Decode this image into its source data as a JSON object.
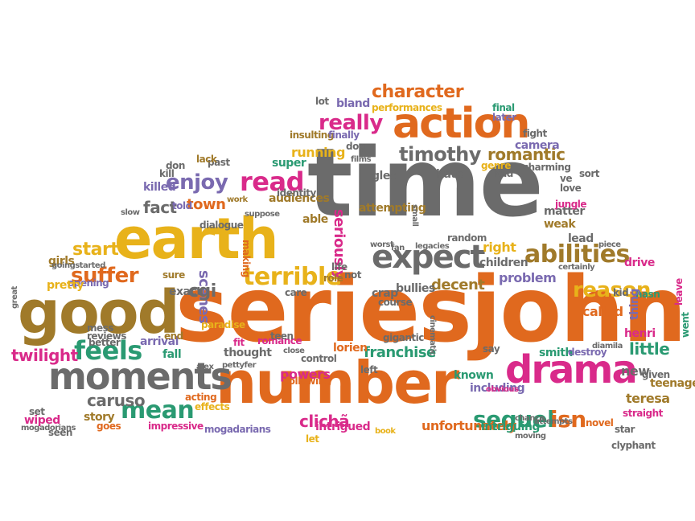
{
  "colors": {
    "orange": "#e0691e",
    "gray": "#6b6b6b",
    "gold": "#e8b21a",
    "olive": "#a07a2a",
    "teal": "#2a9a72",
    "purple": "#7a6ab0",
    "magenta": "#d92a8a",
    "green": "#6bb02a"
  },
  "words": [
    {
      "t": "time",
      "c": "gray"
    },
    {
      "t": "seriesjohn",
      "c": "orange"
    },
    {
      "t": "earth",
      "c": "gold"
    },
    {
      "t": "good",
      "c": "olive"
    },
    {
      "t": "number",
      "c": "orange"
    },
    {
      "t": "action",
      "c": "orange"
    },
    {
      "t": "drama",
      "c": "magenta"
    },
    {
      "t": "moments",
      "c": "gray"
    },
    {
      "t": "expect",
      "c": "gray"
    },
    {
      "t": "terrible",
      "c": "gold"
    },
    {
      "t": "abilities",
      "c": "olive"
    },
    {
      "t": "sequel",
      "c": "teal"
    },
    {
      "t": "isn",
      "c": "orange"
    },
    {
      "t": "feels",
      "c": "teal"
    },
    {
      "t": "mean",
      "c": "teal"
    },
    {
      "t": "read",
      "c": "magenta"
    },
    {
      "t": "enjoy",
      "c": "purple"
    },
    {
      "t": "suffer",
      "c": "orange"
    },
    {
      "t": "timothy",
      "c": "gray"
    },
    {
      "t": "romantic",
      "c": "olive"
    },
    {
      "t": "really",
      "c": "magenta"
    },
    {
      "t": "character",
      "c": "orange"
    },
    {
      "t": "reason",
      "c": "gold"
    },
    {
      "t": "twilight",
      "c": "magenta"
    },
    {
      "t": "caruso",
      "c": "gray"
    },
    {
      "t": "clichã",
      "c": "magenta"
    },
    {
      "t": "unfortunately",
      "c": "orange"
    },
    {
      "t": "franchise",
      "c": "teal"
    },
    {
      "t": "decent",
      "c": "olive"
    },
    {
      "t": "problem",
      "c": "purple"
    },
    {
      "t": "little",
      "c": "teal"
    },
    {
      "t": "called",
      "c": "orange"
    },
    {
      "t": "start",
      "c": "gold"
    },
    {
      "t": "fact",
      "c": "gray"
    },
    {
      "t": "town",
      "c": "orange"
    },
    {
      "t": "running",
      "c": "gold"
    },
    {
      "t": "seriously",
      "c": "magenta"
    },
    {
      "t": "scenes",
      "c": "purple"
    },
    {
      "t": "cgi",
      "c": "gray"
    },
    {
      "t": "intrigued",
      "c": "magenta"
    },
    {
      "t": "powers",
      "c": "magenta"
    },
    {
      "t": "story",
      "c": "olive"
    },
    {
      "t": "smith",
      "c": "teal"
    },
    {
      "t": "destroy",
      "c": "purple"
    },
    {
      "t": "teresa",
      "c": "olive"
    },
    {
      "t": "new",
      "c": "gray"
    },
    {
      "t": "including",
      "c": "purple"
    },
    {
      "t": "intriguing",
      "c": "teal"
    },
    {
      "t": "novel",
      "c": "orange"
    },
    {
      "t": "right",
      "c": "gold"
    },
    {
      "t": "children",
      "c": "gray"
    },
    {
      "t": "lead",
      "c": "gray"
    },
    {
      "t": "drive",
      "c": "magenta"
    },
    {
      "t": "hasn",
      "c": "teal"
    },
    {
      "t": "henri",
      "c": "magenta"
    },
    {
      "t": "teenage",
      "c": "olive"
    },
    {
      "t": "given",
      "c": "gray"
    },
    {
      "t": "thing",
      "c": "purple"
    },
    {
      "t": "kid",
      "c": "gray"
    },
    {
      "t": "matter",
      "c": "gray"
    },
    {
      "t": "weak",
      "c": "olive"
    },
    {
      "t": "sort",
      "c": "gray"
    },
    {
      "t": "random",
      "c": "gray"
    },
    {
      "t": "legacies",
      "c": "gray"
    },
    {
      "t": "glee",
      "c": "gray"
    },
    {
      "t": "hate",
      "c": "gray"
    },
    {
      "t": "genre",
      "c": "gold"
    },
    {
      "t": "bad",
      "c": "gray"
    },
    {
      "t": "fight",
      "c": "gray"
    },
    {
      "t": "camera",
      "c": "purple"
    },
    {
      "t": "final",
      "c": "teal"
    },
    {
      "t": "later",
      "c": "purple"
    },
    {
      "t": "lot",
      "c": "gray"
    },
    {
      "t": "bland",
      "c": "purple"
    },
    {
      "t": "performances",
      "c": "gold"
    },
    {
      "t": "insulting",
      "c": "olive"
    },
    {
      "t": "finally",
      "c": "purple"
    },
    {
      "t": "dog",
      "c": "gray"
    },
    {
      "t": "super",
      "c": "teal"
    },
    {
      "t": "past",
      "c": "gray"
    },
    {
      "t": "don",
      "c": "gray"
    },
    {
      "t": "killed",
      "c": "purple"
    },
    {
      "t": "audiences",
      "c": "olive"
    },
    {
      "t": "able",
      "c": "olive"
    },
    {
      "t": "work",
      "c": "olive"
    },
    {
      "t": "told",
      "c": "purple"
    },
    {
      "t": "girls",
      "c": "olive"
    },
    {
      "t": "opening",
      "c": "purple"
    },
    {
      "t": "pretty",
      "c": "gold"
    },
    {
      "t": "exact",
      "c": "gray"
    },
    {
      "t": "sure",
      "c": "olive"
    },
    {
      "t": "paradise",
      "c": "gold"
    },
    {
      "t": "role",
      "c": "olive"
    },
    {
      "t": "crap",
      "c": "gray"
    },
    {
      "t": "bullies",
      "c": "gray"
    },
    {
      "t": "fall",
      "c": "teal"
    },
    {
      "t": "arrival",
      "c": "purple"
    },
    {
      "t": "lorien",
      "c": "orange"
    },
    {
      "t": "thought",
      "c": "gray"
    },
    {
      "t": "following",
      "c": "orange"
    },
    {
      "t": "known",
      "c": "teal"
    },
    {
      "t": "fit",
      "c": "magenta"
    },
    {
      "t": "romance",
      "c": "magenta"
    },
    {
      "t": "end",
      "c": "olive"
    },
    {
      "t": "acting",
      "c": "orange"
    },
    {
      "t": "effects",
      "c": "gold"
    },
    {
      "t": "impressive",
      "c": "magenta"
    },
    {
      "t": "mogadarians",
      "c": "purple"
    },
    {
      "t": "let",
      "c": "gold"
    },
    {
      "t": "book",
      "c": "gold"
    },
    {
      "t": "goes",
      "c": "orange"
    },
    {
      "t": "seen",
      "c": "gray"
    },
    {
      "t": "set",
      "c": "gray"
    },
    {
      "t": "wiped",
      "c": "magenta"
    },
    {
      "t": "better",
      "c": "gray"
    },
    {
      "t": "reviews",
      "c": "gray"
    },
    {
      "t": "mess",
      "c": "gray"
    },
    {
      "t": "great",
      "c": "gray"
    },
    {
      "t": "went",
      "c": "teal"
    },
    {
      "t": "leave",
      "c": "magenta"
    },
    {
      "t": "star",
      "c": "gray"
    },
    {
      "t": "clyphant",
      "c": "gray"
    },
    {
      "t": "straight",
      "c": "magenta"
    },
    {
      "t": "chance",
      "c": "gray"
    },
    {
      "t": "obvious",
      "c": "magenta"
    },
    {
      "t": "say",
      "c": "gray"
    },
    {
      "t": "diamila",
      "c": "gray"
    },
    {
      "t": "jungle",
      "c": "magenta"
    },
    {
      "t": "love",
      "c": "gray"
    },
    {
      "t": "ve",
      "c": "gray"
    },
    {
      "t": "charming",
      "c": "gray"
    },
    {
      "t": "attempting",
      "c": "olive"
    },
    {
      "t": "life",
      "c": "gray"
    },
    {
      "t": "not",
      "c": "gray"
    },
    {
      "t": "care",
      "c": "gray"
    },
    {
      "t": "making",
      "c": "orange"
    },
    {
      "t": "course",
      "c": "gray"
    },
    {
      "t": "worst",
      "c": "gray"
    },
    {
      "t": "piece",
      "c": "gray"
    },
    {
      "t": "certainly",
      "c": "gray"
    },
    {
      "t": "identity",
      "c": "gray"
    },
    {
      "t": "lack",
      "c": "olive"
    },
    {
      "t": "kill",
      "c": "gray"
    },
    {
      "t": "slow",
      "c": "gray"
    },
    {
      "t": "dialogue",
      "c": "gray"
    },
    {
      "t": "suppose",
      "c": "gray"
    },
    {
      "t": "films",
      "c": "gray"
    },
    {
      "t": "small",
      "c": "gray"
    },
    {
      "t": "fan",
      "c": "gray"
    },
    {
      "t": "gigantic",
      "c": "gray"
    },
    {
      "t": "control",
      "c": "gray"
    },
    {
      "t": "teen",
      "c": "gray"
    },
    {
      "t": "alex",
      "c": "gray"
    },
    {
      "t": "pettyfer",
      "c": "gray"
    },
    {
      "t": "goingstarted",
      "c": "gray"
    },
    {
      "t": "mogadorians",
      "c": "gray"
    },
    {
      "t": "close",
      "c": "gray"
    },
    {
      "t": "left",
      "c": "gray"
    },
    {
      "t": "attempts",
      "c": "gray"
    },
    {
      "t": "moving",
      "c": "gray"
    },
    {
      "t": "cinematic",
      "c": "gray"
    }
  ]
}
